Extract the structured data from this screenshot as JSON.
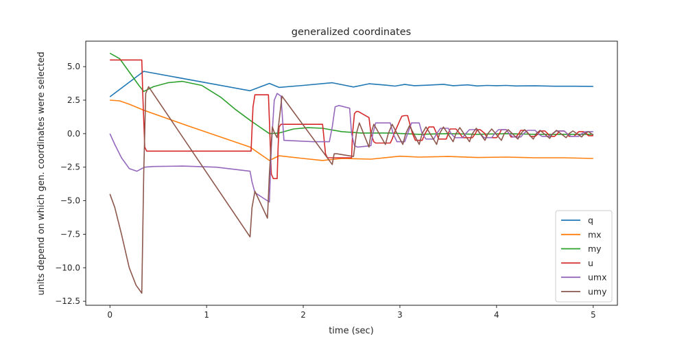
{
  "chart_data": {
    "type": "line",
    "title": "generalized coordinates",
    "xlabel": "time (sec)",
    "ylabel": "units depend on which gen. coordinates were selected",
    "xlim": [
      -0.25,
      5.25
    ],
    "ylim": [
      -12.8,
      6.9
    ],
    "xticks": [
      0,
      1,
      2,
      3,
      4,
      5
    ],
    "xtick_labels": [
      "0",
      "1",
      "2",
      "3",
      "4",
      "5"
    ],
    "yticks": [
      5.0,
      2.5,
      0.0,
      -2.5,
      -5.0,
      -7.5,
      -10.0,
      -12.5
    ],
    "ytick_labels": [
      "5.0",
      "2.5",
      "0.0",
      "−2.5",
      "−5.0",
      "−7.5",
      "−10.0",
      "−12.5"
    ],
    "grid": false,
    "legend_position": "lower-right",
    "series": [
      {
        "name": "q",
        "color": "#1f77b4",
        "x": [
          0,
          0.35,
          1.45,
          1.65,
          1.75,
          2.0,
          2.3,
          2.52,
          2.68,
          2.85,
          2.95,
          3.05,
          3.15,
          3.3,
          3.45,
          3.55,
          3.7,
          3.8,
          3.9,
          4.0,
          4.1,
          4.2,
          4.4,
          4.6,
          4.8,
          5.0
        ],
        "y": [
          2.75,
          4.65,
          3.2,
          3.75,
          3.45,
          3.6,
          3.8,
          3.48,
          3.72,
          3.62,
          3.55,
          3.67,
          3.58,
          3.62,
          3.68,
          3.58,
          3.64,
          3.56,
          3.6,
          3.58,
          3.6,
          3.56,
          3.57,
          3.54,
          3.54,
          3.53
        ]
      },
      {
        "name": "mx",
        "color": "#ff7f0e",
        "x": [
          0,
          0.1,
          0.2,
          0.35,
          0.8,
          1.45,
          1.65,
          1.75,
          2.0,
          2.2,
          2.4,
          2.7,
          3.0,
          3.2,
          3.5,
          3.8,
          4.1,
          4.4,
          4.7,
          5.0
        ],
        "y": [
          2.5,
          2.45,
          2.2,
          1.75,
          0.6,
          -1.0,
          -2.0,
          -1.65,
          -1.85,
          -2.0,
          -1.85,
          -1.9,
          -1.68,
          -1.75,
          -1.7,
          -1.78,
          -1.75,
          -1.8,
          -1.8,
          -1.85
        ]
      },
      {
        "name": "my",
        "color": "#2ca02c",
        "x": [
          0,
          0.1,
          0.2,
          0.3,
          0.35,
          0.45,
          0.6,
          0.75,
          0.95,
          1.15,
          1.3,
          1.45,
          1.55,
          1.65,
          1.75,
          1.9,
          2.05,
          2.2,
          2.4,
          2.6,
          2.9,
          3.2,
          3.5,
          3.8,
          4.1,
          4.4,
          4.7,
          5.0
        ],
        "y": [
          6.0,
          5.6,
          4.6,
          3.6,
          3.15,
          3.5,
          3.8,
          3.9,
          3.6,
          2.7,
          1.8,
          1.0,
          0.5,
          0.0,
          0.05,
          0.35,
          0.45,
          0.4,
          0.15,
          0.05,
          0.05,
          -0.05,
          0.0,
          -0.05,
          0.0,
          -0.05,
          -0.05,
          -0.05
        ]
      },
      {
        "name": "u",
        "color": "#d62728",
        "x": [
          0,
          0.33,
          0.34,
          0.36,
          0.38,
          1.46,
          1.48,
          1.5,
          1.64,
          1.65,
          1.67,
          1.69,
          1.73,
          1.74,
          1.75,
          1.77,
          2.2,
          2.21,
          2.23,
          2.25,
          2.28,
          2.5,
          2.51,
          2.53,
          2.55,
          2.57,
          2.68,
          2.7,
          2.73,
          2.75,
          2.9,
          2.92,
          2.94,
          3.0,
          3.02,
          3.05,
          3.08,
          3.1,
          3.13,
          3.16,
          3.23,
          3.26,
          3.3,
          3.35,
          3.38,
          3.4,
          3.48,
          3.5,
          3.52,
          3.58,
          3.62,
          3.65,
          3.68,
          3.75,
          3.78,
          3.8,
          3.83,
          3.88,
          3.9,
          3.93,
          4.0,
          4.03,
          4.05,
          4.1,
          4.13,
          4.15,
          4.2,
          4.23,
          4.25,
          4.3,
          4.33,
          4.35,
          4.4,
          4.43,
          4.45,
          4.5,
          4.53,
          4.55,
          4.6,
          4.63,
          4.65,
          4.7,
          4.73,
          4.75,
          4.8,
          4.83,
          4.85,
          4.9,
          4.93,
          4.95,
          5.0
        ],
        "y": [
          5.5,
          5.5,
          3.0,
          -1.0,
          -1.3,
          -1.3,
          2.0,
          2.9,
          2.9,
          1.0,
          -3.0,
          -3.35,
          -3.35,
          -1.0,
          0.5,
          0.7,
          0.7,
          0.0,
          -1.5,
          -1.8,
          -1.8,
          -1.8,
          0.0,
          1.5,
          1.65,
          1.65,
          1.2,
          0.0,
          -0.6,
          -0.7,
          -0.7,
          -0.4,
          0.0,
          1.0,
          1.3,
          1.35,
          1.35,
          0.8,
          0.0,
          -0.5,
          -0.5,
          0.0,
          0.5,
          0.5,
          0.0,
          -0.4,
          -0.4,
          0.0,
          0.35,
          0.35,
          0.0,
          -0.3,
          -0.3,
          -0.3,
          0.0,
          0.3,
          0.3,
          0.0,
          -0.3,
          -0.3,
          -0.3,
          0.0,
          0.3,
          0.3,
          0.0,
          -0.25,
          -0.25,
          0.0,
          0.25,
          0.25,
          0.0,
          -0.2,
          -0.2,
          0.0,
          0.2,
          0.2,
          0.0,
          -0.2,
          -0.2,
          0.0,
          0.2,
          0.2,
          0.0,
          -0.2,
          -0.2,
          0.0,
          0.15,
          0.15,
          0.0,
          -0.15,
          -0.15
        ]
      },
      {
        "name": "umx",
        "color": "#9467bd",
        "x": [
          0,
          0.05,
          0.12,
          0.2,
          0.28,
          0.33,
          0.36,
          0.45,
          0.75,
          1.1,
          1.45,
          1.47,
          1.5,
          1.65,
          1.67,
          1.7,
          1.73,
          1.77,
          1.8,
          2.1,
          2.27,
          2.3,
          2.33,
          2.37,
          2.48,
          2.5,
          2.53,
          2.56,
          2.7,
          2.72,
          2.75,
          2.9,
          2.93,
          2.97,
          3.05,
          3.08,
          3.12,
          3.2,
          3.23,
          3.27,
          3.35,
          3.38,
          3.42,
          3.5,
          3.53,
          3.57,
          3.65,
          3.68,
          3.72,
          3.8,
          3.83,
          3.87,
          3.95,
          3.98,
          4.02,
          4.1,
          4.13,
          4.17,
          4.25,
          4.28,
          4.32,
          4.4,
          4.43,
          4.47,
          4.55,
          4.58,
          4.62,
          4.7,
          4.73,
          4.77,
          4.85,
          4.88,
          4.92,
          5.0
        ],
        "y": [
          0.0,
          -0.8,
          -1.8,
          -2.6,
          -2.8,
          -2.6,
          -2.5,
          -2.45,
          -2.42,
          -2.5,
          -2.8,
          -3.6,
          -4.4,
          -5.1,
          -1.0,
          2.5,
          3.0,
          2.8,
          -0.5,
          -0.6,
          -0.6,
          0.5,
          2.0,
          2.1,
          1.9,
          0.0,
          -0.9,
          -1.0,
          -0.9,
          0.0,
          0.8,
          0.8,
          0.0,
          -0.6,
          -0.6,
          0.0,
          0.8,
          0.8,
          0.0,
          -0.4,
          -0.4,
          0.0,
          0.4,
          0.4,
          0.0,
          -0.3,
          -0.3,
          0.0,
          0.3,
          0.3,
          0.0,
          -0.3,
          -0.3,
          0.0,
          0.3,
          0.3,
          0.0,
          -0.25,
          -0.25,
          0.0,
          0.25,
          0.25,
          0.0,
          -0.2,
          -0.2,
          0.0,
          0.2,
          0.2,
          0.0,
          -0.2,
          -0.2,
          0.0,
          0.15,
          0.15
        ]
      },
      {
        "name": "umy",
        "color": "#8c564b",
        "x": [
          0,
          0.05,
          0.12,
          0.2,
          0.27,
          0.33,
          0.35,
          0.37,
          0.4,
          1.45,
          1.47,
          1.5,
          1.63,
          1.65,
          1.68,
          1.7,
          1.73,
          1.78,
          2.3,
          2.32,
          2.35,
          2.52,
          2.55,
          2.58,
          2.68,
          2.7,
          2.73,
          2.85,
          2.88,
          2.92,
          3.03,
          3.06,
          3.1,
          3.2,
          3.23,
          3.27,
          3.38,
          3.41,
          3.45,
          3.55,
          3.58,
          3.62,
          3.72,
          3.75,
          3.79,
          3.88,
          3.91,
          3.95,
          4.05,
          4.08,
          4.12,
          4.22,
          4.25,
          4.29,
          4.38,
          4.41,
          4.45,
          4.55,
          4.58,
          4.62,
          4.72,
          4.75,
          4.79,
          4.88,
          4.91,
          4.95,
          5.0
        ],
        "y": [
          -4.5,
          -5.5,
          -7.5,
          -10.0,
          -11.3,
          -11.9,
          -3.0,
          3.0,
          3.5,
          -7.7,
          -5.5,
          -4.3,
          -6.3,
          -3.0,
          0.5,
          0.1,
          -0.3,
          2.8,
          -2.3,
          -1.5,
          -1.5,
          -1.7,
          0.0,
          0.8,
          -1.0,
          0.0,
          0.7,
          -0.8,
          0.0,
          0.7,
          -0.8,
          0.0,
          0.6,
          -0.8,
          0.0,
          0.5,
          -0.8,
          0.0,
          0.5,
          -0.6,
          0.0,
          0.45,
          -0.6,
          0.0,
          0.4,
          -0.5,
          0.0,
          0.35,
          -0.5,
          0.0,
          0.3,
          -0.4,
          0.0,
          0.3,
          -0.4,
          0.0,
          0.25,
          -0.35,
          0.0,
          0.25,
          -0.3,
          0.0,
          0.2,
          -0.25,
          0.0,
          0.15,
          -0.1
        ]
      }
    ]
  }
}
